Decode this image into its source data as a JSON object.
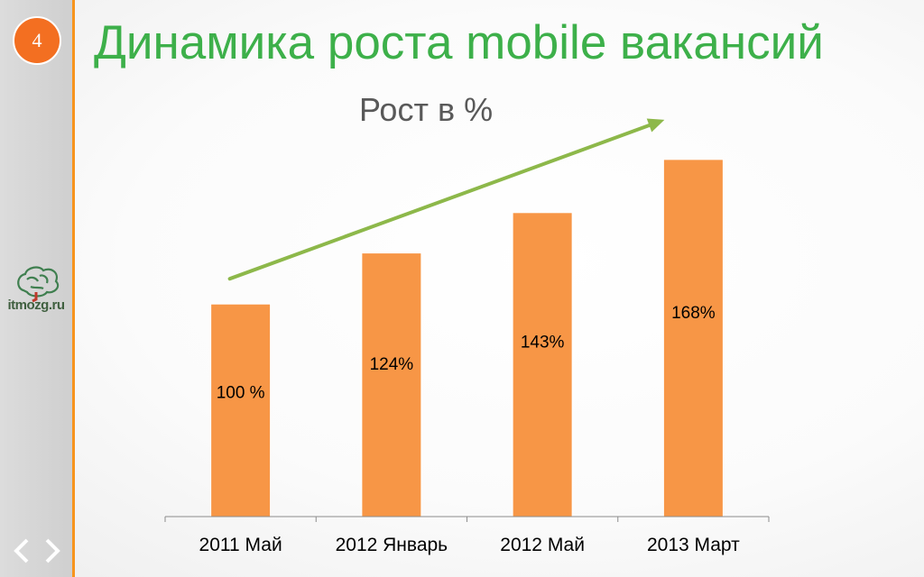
{
  "slide": {
    "number": "4",
    "title": "Динамика роста mobile вакансий"
  },
  "logo": {
    "text": "itmozg.ru"
  },
  "navigation": {
    "prev_icon": "chevron-left-icon",
    "next_icon": "chevron-right-icon"
  },
  "colors": {
    "title": "#3db04a",
    "bar": "#f79646",
    "trend_arrow": "#8db84a",
    "accent": "#f36f21"
  },
  "chart_data": {
    "type": "bar",
    "title": "Рост в %",
    "categories": [
      "2011 Май",
      "2012 Январь",
      "2012 Май",
      "2013 Март"
    ],
    "values": [
      100,
      124,
      143,
      168
    ],
    "data_labels": [
      "100 %",
      "124%",
      "143%",
      "168%"
    ],
    "ylim": [
      0,
      243
    ],
    "xlabel": "",
    "ylabel": "",
    "grid": false,
    "legend": "none",
    "annotations": [
      {
        "type": "trend-arrow",
        "direction": "up-right"
      }
    ]
  }
}
